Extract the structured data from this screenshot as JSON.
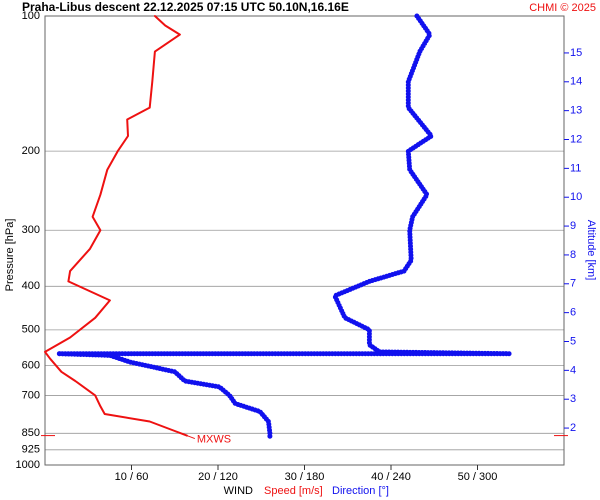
{
  "chart_data": {
    "type": "line",
    "title": "Praha-Libus   descent   22.12.2025 07:15 UTC   50.10N,16.16E",
    "credit": "CHMI © 2025",
    "ylabel": "Pressure [hPa]",
    "y2label": "Altitude [km]",
    "xlabel": "WIND",
    "xlabel_speed": "Speed [m/s]",
    "xlabel_direction": "Direction [°]",
    "annotation": "MXWS",
    "yscale": "log",
    "ylim": [
      100,
      1000
    ],
    "yticks": [
      100,
      200,
      300,
      400,
      500,
      600,
      700,
      850,
      925,
      1000
    ],
    "y2lim": [
      0.72,
      16.28
    ],
    "y2ticks": [
      2,
      3,
      4,
      5,
      6,
      7,
      8,
      9,
      10,
      11,
      12,
      13,
      14,
      15
    ],
    "xlim": [
      0,
      60
    ],
    "x2lim": [
      0,
      360
    ],
    "xticks": [
      {
        "value": 10,
        "label": "10 / 60"
      },
      {
        "value": 20,
        "label": "20 / 120"
      },
      {
        "value": 30,
        "label": "30 / 180"
      },
      {
        "value": 40,
        "label": "40 / 240"
      },
      {
        "value": 50,
        "label": "50 / 300"
      }
    ],
    "grid": true,
    "series": [
      {
        "name": "Speed [m/s]",
        "color": "#ee1111",
        "axis": "x",
        "pressure": [
          100,
          105,
          110,
          120,
          140,
          160,
          170,
          185,
          200,
          220,
          250,
          280,
          300,
          330,
          370,
          390,
          430,
          470,
          520,
          560,
          580,
          620,
          650,
          700,
          740,
          770,
          800,
          840,
          860
        ],
        "values": [
          12.7,
          13.9,
          15.6,
          12.7,
          12.4,
          12.1,
          9.5,
          9.6,
          8.4,
          7.2,
          6.4,
          5.5,
          6.4,
          5.2,
          2.9,
          2.7,
          7.5,
          5.8,
          2.9,
          0,
          0.6,
          1.9,
          3.5,
          5.8,
          6.4,
          6.9,
          12.1,
          15,
          16.4
        ]
      },
      {
        "name": "Direction [°]",
        "color": "#1111ee",
        "axis": "x2",
        "pressure": [
          100,
          110,
          120,
          140,
          160,
          185,
          200,
          220,
          250,
          280,
          300,
          350,
          370,
          390,
          420,
          470,
          500,
          540,
          560,
          565,
          565,
          570,
          590,
          620,
          650,
          670,
          700,
          730,
          760,
          800,
          850,
          870
        ],
        "values": [
          258,
          267,
          260,
          252,
          252,
          268,
          252,
          253,
          265,
          255,
          253,
          254,
          249,
          225,
          201,
          208,
          225,
          225,
          232,
          322,
          9,
          45,
          59,
          90,
          97,
          121,
          128,
          132,
          149,
          155,
          156,
          156
        ]
      }
    ]
  }
}
